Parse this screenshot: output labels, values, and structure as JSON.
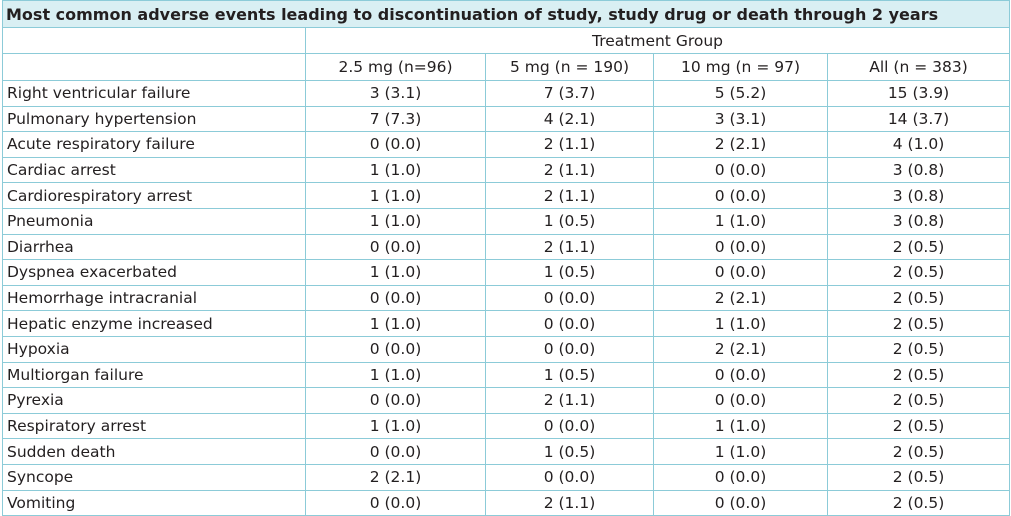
{
  "table": {
    "title": "Most common adverse events leading to discontinuation of study, study drug or death through 2 years",
    "group_header": "Treatment Group",
    "columns": [
      "2.5 mg (n=96)",
      "5 mg (n = 190)",
      "10 mg (n = 97)",
      "All (n = 383)"
    ],
    "rows": [
      {
        "event": "Right ventricular failure",
        "values": [
          "3 (3.1)",
          "7 (3.7)",
          "5 (5.2)",
          "15 (3.9)"
        ]
      },
      {
        "event": "Pulmonary hypertension",
        "values": [
          "7 (7.3)",
          "4 (2.1)",
          "3 (3.1)",
          "14 (3.7)"
        ]
      },
      {
        "event": "Acute respiratory failure",
        "values": [
          "0 (0.0)",
          "2 (1.1)",
          "2 (2.1)",
          "4 (1.0)"
        ]
      },
      {
        "event": "Cardiac arrest",
        "values": [
          "1 (1.0)",
          "2 (1.1)",
          "0 (0.0)",
          "3 (0.8)"
        ]
      },
      {
        "event": "Cardiorespiratory arrest",
        "values": [
          "1 (1.0)",
          "2 (1.1)",
          "0 (0.0)",
          "3 (0.8)"
        ]
      },
      {
        "event": "Pneumonia",
        "values": [
          "1 (1.0)",
          "1 (0.5)",
          "1 (1.0)",
          "3 (0.8)"
        ]
      },
      {
        "event": "Diarrhea",
        "values": [
          "0 (0.0)",
          "2 (1.1)",
          "0 (0.0)",
          "2 (0.5)"
        ]
      },
      {
        "event": "Dyspnea exacerbated",
        "values": [
          "1 (1.0)",
          "1 (0.5)",
          "0 (0.0)",
          "2 (0.5)"
        ]
      },
      {
        "event": "Hemorrhage intracranial",
        "values": [
          "0 (0.0)",
          "0 (0.0)",
          "2 (2.1)",
          "2 (0.5)"
        ]
      },
      {
        "event": "Hepatic enzyme increased",
        "values": [
          "1 (1.0)",
          "0 (0.0)",
          "1 (1.0)",
          "2 (0.5)"
        ]
      },
      {
        "event": "Hypoxia",
        "values": [
          "0 (0.0)",
          "0 (0.0)",
          "2 (2.1)",
          "2 (0.5)"
        ]
      },
      {
        "event": "Multiorgan failure",
        "values": [
          "1 (1.0)",
          "1 (0.5)",
          "0 (0.0)",
          "2 (0.5)"
        ]
      },
      {
        "event": "Pyrexia",
        "values": [
          "0 (0.0)",
          "2 (1.1)",
          "0 (0.0)",
          "2 (0.5)"
        ]
      },
      {
        "event": "Respiratory arrest",
        "values": [
          "1 (1.0)",
          "0 (0.0)",
          "1 (1.0)",
          "2 (0.5)"
        ]
      },
      {
        "event": "Sudden death",
        "values": [
          "0 (0.0)",
          "1 (0.5)",
          "1 (1.0)",
          "2 (0.5)"
        ]
      },
      {
        "event": "Syncope",
        "values": [
          "2 (2.1)",
          "0 (0.0)",
          "0 (0.0)",
          "2 (0.5)"
        ]
      },
      {
        "event": "Vomiting",
        "values": [
          "0 (0.0)",
          "2 (1.1)",
          "0 (0.0)",
          "2 (0.5)"
        ]
      }
    ]
  },
  "colors": {
    "title_background": "#d9eff3",
    "border": "#8ccbd8",
    "text": "#231f20"
  }
}
